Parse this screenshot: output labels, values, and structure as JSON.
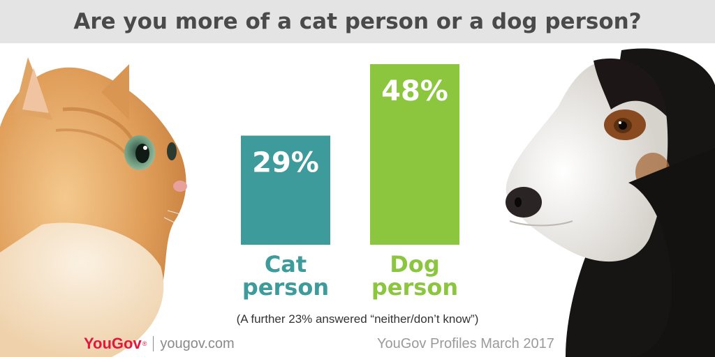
{
  "header": {
    "title": "Are you more of a cat person or a dog person?"
  },
  "images": {
    "left": "cat-photo",
    "right": "dog-photo"
  },
  "chart_data": {
    "type": "bar",
    "title": "Are you more of a cat person or a dog person?",
    "categories": [
      "Cat person",
      "Dog person"
    ],
    "category_lines": [
      [
        "Cat",
        "person"
      ],
      [
        "Dog",
        "person"
      ]
    ],
    "values": [
      29,
      48
    ],
    "value_labels": [
      "29%",
      "48%"
    ],
    "unit": "%",
    "colors": [
      "#3d9b9b",
      "#8cc63f"
    ],
    "ylim": [
      0,
      48
    ],
    "grid": false,
    "legend": "none",
    "note": "(A further 23% answered “neither/don’t know”)"
  },
  "footer": {
    "brand": "YouGov",
    "site": "yougov.com",
    "source": "YouGov Profiles March 2017"
  }
}
